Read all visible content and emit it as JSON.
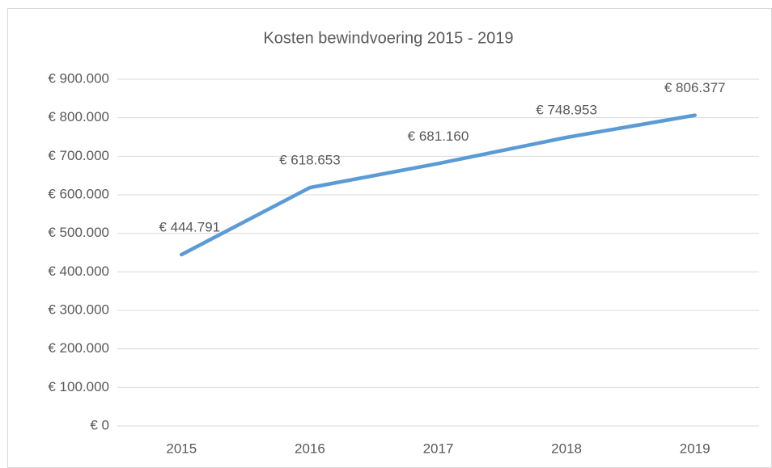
{
  "chart_data": {
    "type": "line",
    "title": "Kosten bewindvoering 2015 - 2019",
    "categories": [
      "2015",
      "2016",
      "2017",
      "2018",
      "2019"
    ],
    "series": [
      {
        "name": "Kosten",
        "color": "#5b9bd5",
        "values": [
          444791,
          618653,
          681160,
          748953,
          806377
        ],
        "value_labels": [
          "€ 444.791",
          "€ 618.653",
          "€ 681.160",
          "€ 748.953",
          "€ 806.377"
        ]
      }
    ],
    "ylim": [
      0,
      900000
    ],
    "yticks": [
      {
        "value": 0,
        "label": "€ 0"
      },
      {
        "value": 100000,
        "label": "€ 100.000"
      },
      {
        "value": 200000,
        "label": "€ 200.000"
      },
      {
        "value": 300000,
        "label": "€ 300.000"
      },
      {
        "value": 400000,
        "label": "€ 400.000"
      },
      {
        "value": 500000,
        "label": "€ 500.000"
      },
      {
        "value": 600000,
        "label": "€ 600.000"
      },
      {
        "value": 700000,
        "label": "€ 700.000"
      },
      {
        "value": 800000,
        "label": "€ 800.000"
      },
      {
        "value": 900000,
        "label": "€ 900.000"
      }
    ],
    "grid": true
  }
}
